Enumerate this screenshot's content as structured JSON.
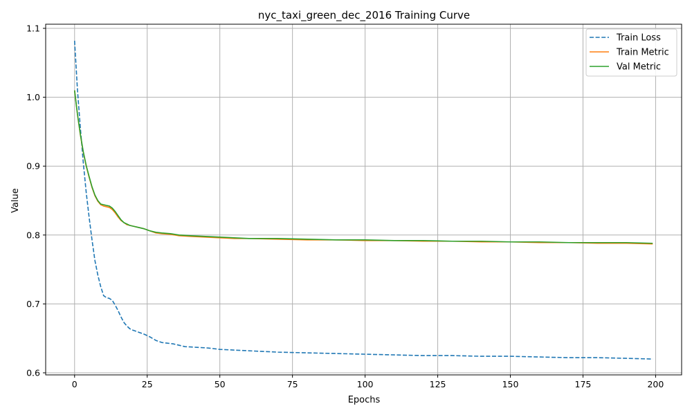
{
  "chart_data": {
    "type": "line",
    "title": "nyc_taxi_green_dec_2016 Training Curve",
    "xlabel": "Epochs",
    "ylabel": "Value",
    "xlim": [
      -9.95,
      208.95
    ],
    "ylim": [
      0.597,
      1.106
    ],
    "xticks": [
      0,
      25,
      50,
      75,
      100,
      125,
      150,
      175,
      200
    ],
    "yticks": [
      0.6,
      0.7,
      0.8,
      0.9,
      1.0,
      1.1
    ],
    "ytick_labels": [
      "0.6",
      "0.7",
      "0.8",
      "0.9",
      "1.0",
      "1.1"
    ],
    "grid": true,
    "legend_position": "top-right",
    "series": [
      {
        "name": "Train Loss",
        "color": "#1f77b4",
        "style": "dashed",
        "points": [
          [
            0,
            1.082
          ],
          [
            1,
            1.01
          ],
          [
            2,
            0.955
          ],
          [
            3,
            0.905
          ],
          [
            4,
            0.862
          ],
          [
            5,
            0.826
          ],
          [
            6,
            0.793
          ],
          [
            7,
            0.763
          ],
          [
            8,
            0.742
          ],
          [
            9,
            0.725
          ],
          [
            10,
            0.712
          ],
          [
            11,
            0.709
          ],
          [
            12,
            0.708
          ],
          [
            13,
            0.705
          ],
          [
            14,
            0.698
          ],
          [
            15,
            0.69
          ],
          [
            16,
            0.681
          ],
          [
            17,
            0.673
          ],
          [
            18,
            0.668
          ],
          [
            19,
            0.664
          ],
          [
            20,
            0.662
          ],
          [
            22,
            0.659
          ],
          [
            24,
            0.656
          ],
          [
            26,
            0.652
          ],
          [
            28,
            0.647
          ],
          [
            30,
            0.644
          ],
          [
            32,
            0.643
          ],
          [
            34,
            0.642
          ],
          [
            36,
            0.64
          ],
          [
            38,
            0.638
          ],
          [
            42,
            0.637
          ],
          [
            46,
            0.636
          ],
          [
            50,
            0.634
          ],
          [
            55,
            0.633
          ],
          [
            60,
            0.632
          ],
          [
            70,
            0.63
          ],
          [
            80,
            0.629
          ],
          [
            90,
            0.628
          ],
          [
            100,
            0.627
          ],
          [
            110,
            0.626
          ],
          [
            120,
            0.625
          ],
          [
            130,
            0.625
          ],
          [
            140,
            0.624
          ],
          [
            150,
            0.624
          ],
          [
            160,
            0.623
          ],
          [
            170,
            0.622
          ],
          [
            180,
            0.622
          ],
          [
            190,
            0.621
          ],
          [
            199,
            0.62
          ]
        ]
      },
      {
        "name": "Train Metric",
        "color": "#ff7f0e",
        "style": "solid",
        "points": [
          [
            0,
            1.01
          ],
          [
            1,
            0.975
          ],
          [
            2,
            0.945
          ],
          [
            3,
            0.92
          ],
          [
            4,
            0.9
          ],
          [
            5,
            0.884
          ],
          [
            6,
            0.869
          ],
          [
            7,
            0.857
          ],
          [
            8,
            0.849
          ],
          [
            9,
            0.844
          ],
          [
            10,
            0.842
          ],
          [
            11,
            0.841
          ],
          [
            12,
            0.84
          ],
          [
            13,
            0.837
          ],
          [
            14,
            0.832
          ],
          [
            15,
            0.826
          ],
          [
            16,
            0.821
          ],
          [
            17,
            0.818
          ],
          [
            18,
            0.815
          ],
          [
            19,
            0.814
          ],
          [
            20,
            0.813
          ],
          [
            22,
            0.811
          ],
          [
            24,
            0.809
          ],
          [
            26,
            0.806
          ],
          [
            28,
            0.803
          ],
          [
            30,
            0.802
          ],
          [
            33,
            0.801
          ],
          [
            36,
            0.799
          ],
          [
            40,
            0.798
          ],
          [
            45,
            0.797
          ],
          [
            50,
            0.796
          ],
          [
            55,
            0.795
          ],
          [
            60,
            0.795
          ],
          [
            70,
            0.794
          ],
          [
            80,
            0.793
          ],
          [
            90,
            0.793
          ],
          [
            100,
            0.792
          ],
          [
            110,
            0.792
          ],
          [
            120,
            0.791
          ],
          [
            130,
            0.791
          ],
          [
            140,
            0.79
          ],
          [
            150,
            0.79
          ],
          [
            160,
            0.789
          ],
          [
            170,
            0.789
          ],
          [
            180,
            0.788
          ],
          [
            190,
            0.788
          ],
          [
            199,
            0.787
          ]
        ]
      },
      {
        "name": "Val Metric",
        "color": "#2ca02c",
        "style": "solid",
        "points": [
          [
            0,
            1.01
          ],
          [
            1,
            0.975
          ],
          [
            2,
            0.946
          ],
          [
            3,
            0.921
          ],
          [
            4,
            0.901
          ],
          [
            5,
            0.885
          ],
          [
            6,
            0.87
          ],
          [
            7,
            0.858
          ],
          [
            8,
            0.85
          ],
          [
            9,
            0.845
          ],
          [
            10,
            0.844
          ],
          [
            11,
            0.843
          ],
          [
            12,
            0.842
          ],
          [
            13,
            0.839
          ],
          [
            14,
            0.834
          ],
          [
            15,
            0.828
          ],
          [
            16,
            0.822
          ],
          [
            17,
            0.818
          ],
          [
            18,
            0.816
          ],
          [
            19,
            0.814
          ],
          [
            20,
            0.813
          ],
          [
            22,
            0.811
          ],
          [
            24,
            0.809
          ],
          [
            26,
            0.806
          ],
          [
            28,
            0.804
          ],
          [
            30,
            0.803
          ],
          [
            33,
            0.802
          ],
          [
            36,
            0.8
          ],
          [
            40,
            0.799
          ],
          [
            45,
            0.798
          ],
          [
            50,
            0.797
          ],
          [
            55,
            0.796
          ],
          [
            60,
            0.795
          ],
          [
            70,
            0.795
          ],
          [
            80,
            0.794
          ],
          [
            90,
            0.793
          ],
          [
            100,
            0.793
          ],
          [
            110,
            0.792
          ],
          [
            120,
            0.792
          ],
          [
            130,
            0.791
          ],
          [
            140,
            0.791
          ],
          [
            150,
            0.79
          ],
          [
            160,
            0.79
          ],
          [
            170,
            0.789
          ],
          [
            180,
            0.789
          ],
          [
            190,
            0.789
          ],
          [
            199,
            0.788
          ]
        ]
      }
    ]
  }
}
